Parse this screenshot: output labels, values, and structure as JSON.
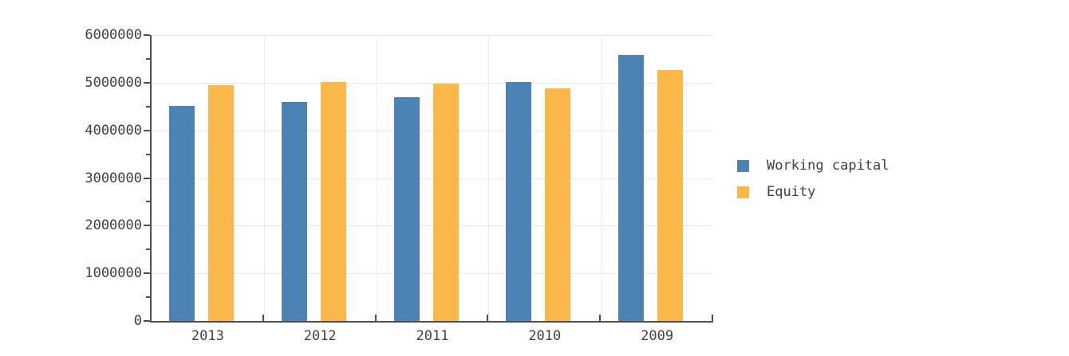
{
  "chart_data": {
    "type": "bar",
    "categories": [
      "2013",
      "2012",
      "2011",
      "2010",
      "2009"
    ],
    "series": [
      {
        "name": "Working capital",
        "color": "#4D82B4",
        "values": [
          4520000,
          4600000,
          4690000,
          5010000,
          5580000
        ]
      },
      {
        "name": "Equity",
        "color": "#FBB84A",
        "values": [
          4940000,
          5010000,
          4980000,
          4880000,
          5260000
        ]
      }
    ],
    "title": "",
    "xlabel": "",
    "ylabel": "",
    "ylim": [
      0,
      6000000
    ],
    "y_major_tick_interval": 1000000,
    "y_minor_tick_interval": 500000,
    "y_tick_labels": [
      "0",
      "1000000",
      "2000000",
      "3000000",
      "4000000",
      "5000000",
      "6000000"
    ],
    "grid": "on",
    "legend_position": "right-middle"
  },
  "colors": {
    "axis": "#4F4F4F",
    "gridline_h": "#E8E8E8",
    "gridline_v": "#EBEBEB",
    "text": "#404040",
    "background": "#FFFFFF"
  }
}
